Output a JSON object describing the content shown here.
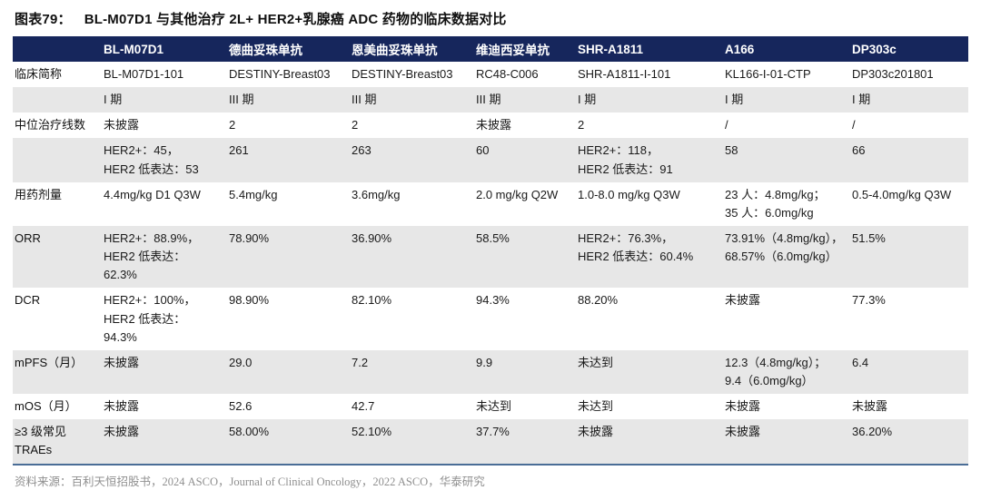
{
  "title": {
    "prefix": "图表79：",
    "text": "BL-M07D1 与其他治疗 2L+ HER2+乳腺癌 ADC 药物的临床数据对比"
  },
  "table": {
    "header": [
      "",
      "BL-M07D1",
      "德曲妥珠单抗",
      "恩美曲妥珠单抗",
      "维迪西妥单抗",
      "SHR-A1811",
      "A166",
      "DP303c"
    ],
    "rows": [
      {
        "label": "临床简称",
        "cells": [
          "BL-M07D1-101",
          "DESTINY-Breast03",
          "DESTINY-Breast03",
          "RC48-C006",
          "SHR-A1811-I-101",
          "KL166-I-01-CTP",
          "DP303c201801"
        ]
      },
      {
        "label": "",
        "cells": [
          "I 期",
          "III 期",
          "III 期",
          "III 期",
          "I 期",
          "I 期",
          "I 期"
        ]
      },
      {
        "label": "中位治疗线数",
        "cells": [
          "未披露",
          "2",
          "2",
          "未披露",
          "2",
          "/",
          "/"
        ]
      },
      {
        "label": "",
        "cells": [
          "HER2+：45，\nHER2 低表达：53",
          "261",
          "263",
          "60",
          "HER2+：118，\nHER2 低表达：91",
          "58",
          "66"
        ]
      },
      {
        "label": "用药剂量",
        "cells": [
          "4.4mg/kg D1 Q3W",
          "5.4mg/kg",
          "3.6mg/kg",
          "2.0 mg/kg Q2W",
          "1.0-8.0 mg/kg Q3W",
          "23 人：4.8mg/kg；\n35 人：6.0mg/kg",
          "0.5-4.0mg/kg Q3W"
        ]
      },
      {
        "label": "ORR",
        "cells": [
          "HER2+：88.9%，\nHER2 低表达：\n62.3%",
          "78.90%",
          "36.90%",
          "58.5%",
          "HER2+：76.3%，\nHER2 低表达：60.4%",
          "73.91%（4.8mg/kg），\n68.57%（6.0mg/kg）",
          "51.5%"
        ]
      },
      {
        "label": "DCR",
        "cells": [
          "HER2+：100%，\nHER2 低表达：\n94.3%",
          "98.90%",
          "82.10%",
          "94.3%",
          "88.20%",
          "未披露",
          "77.3%"
        ]
      },
      {
        "label": "mPFS（月）",
        "cells": [
          "未披露",
          "29.0",
          "7.2",
          "9.9",
          "未达到",
          "12.3（4.8mg/kg）；\n9.4（6.0mg/kg）",
          "6.4"
        ]
      },
      {
        "label": "mOS（月）",
        "cells": [
          "未披露",
          "52.6",
          "42.7",
          "未达到",
          "未达到",
          "未披露",
          "未披露"
        ]
      },
      {
        "label": "≥3 级常见\nTRAEs",
        "cells": [
          "未披露",
          "58.00%",
          "52.10%",
          "37.7%",
          "未披露",
          "未披露",
          "36.20%"
        ]
      }
    ]
  },
  "footer": {
    "source": "资料来源：百利天恒招股书，2024 ASCO，Journal of Clinical Oncology，2022 ASCO，华泰研究"
  },
  "colors": {
    "header_bg": "#16265c",
    "row_shade": "#e7e7e7",
    "bottom_border": "#4a6d96"
  }
}
